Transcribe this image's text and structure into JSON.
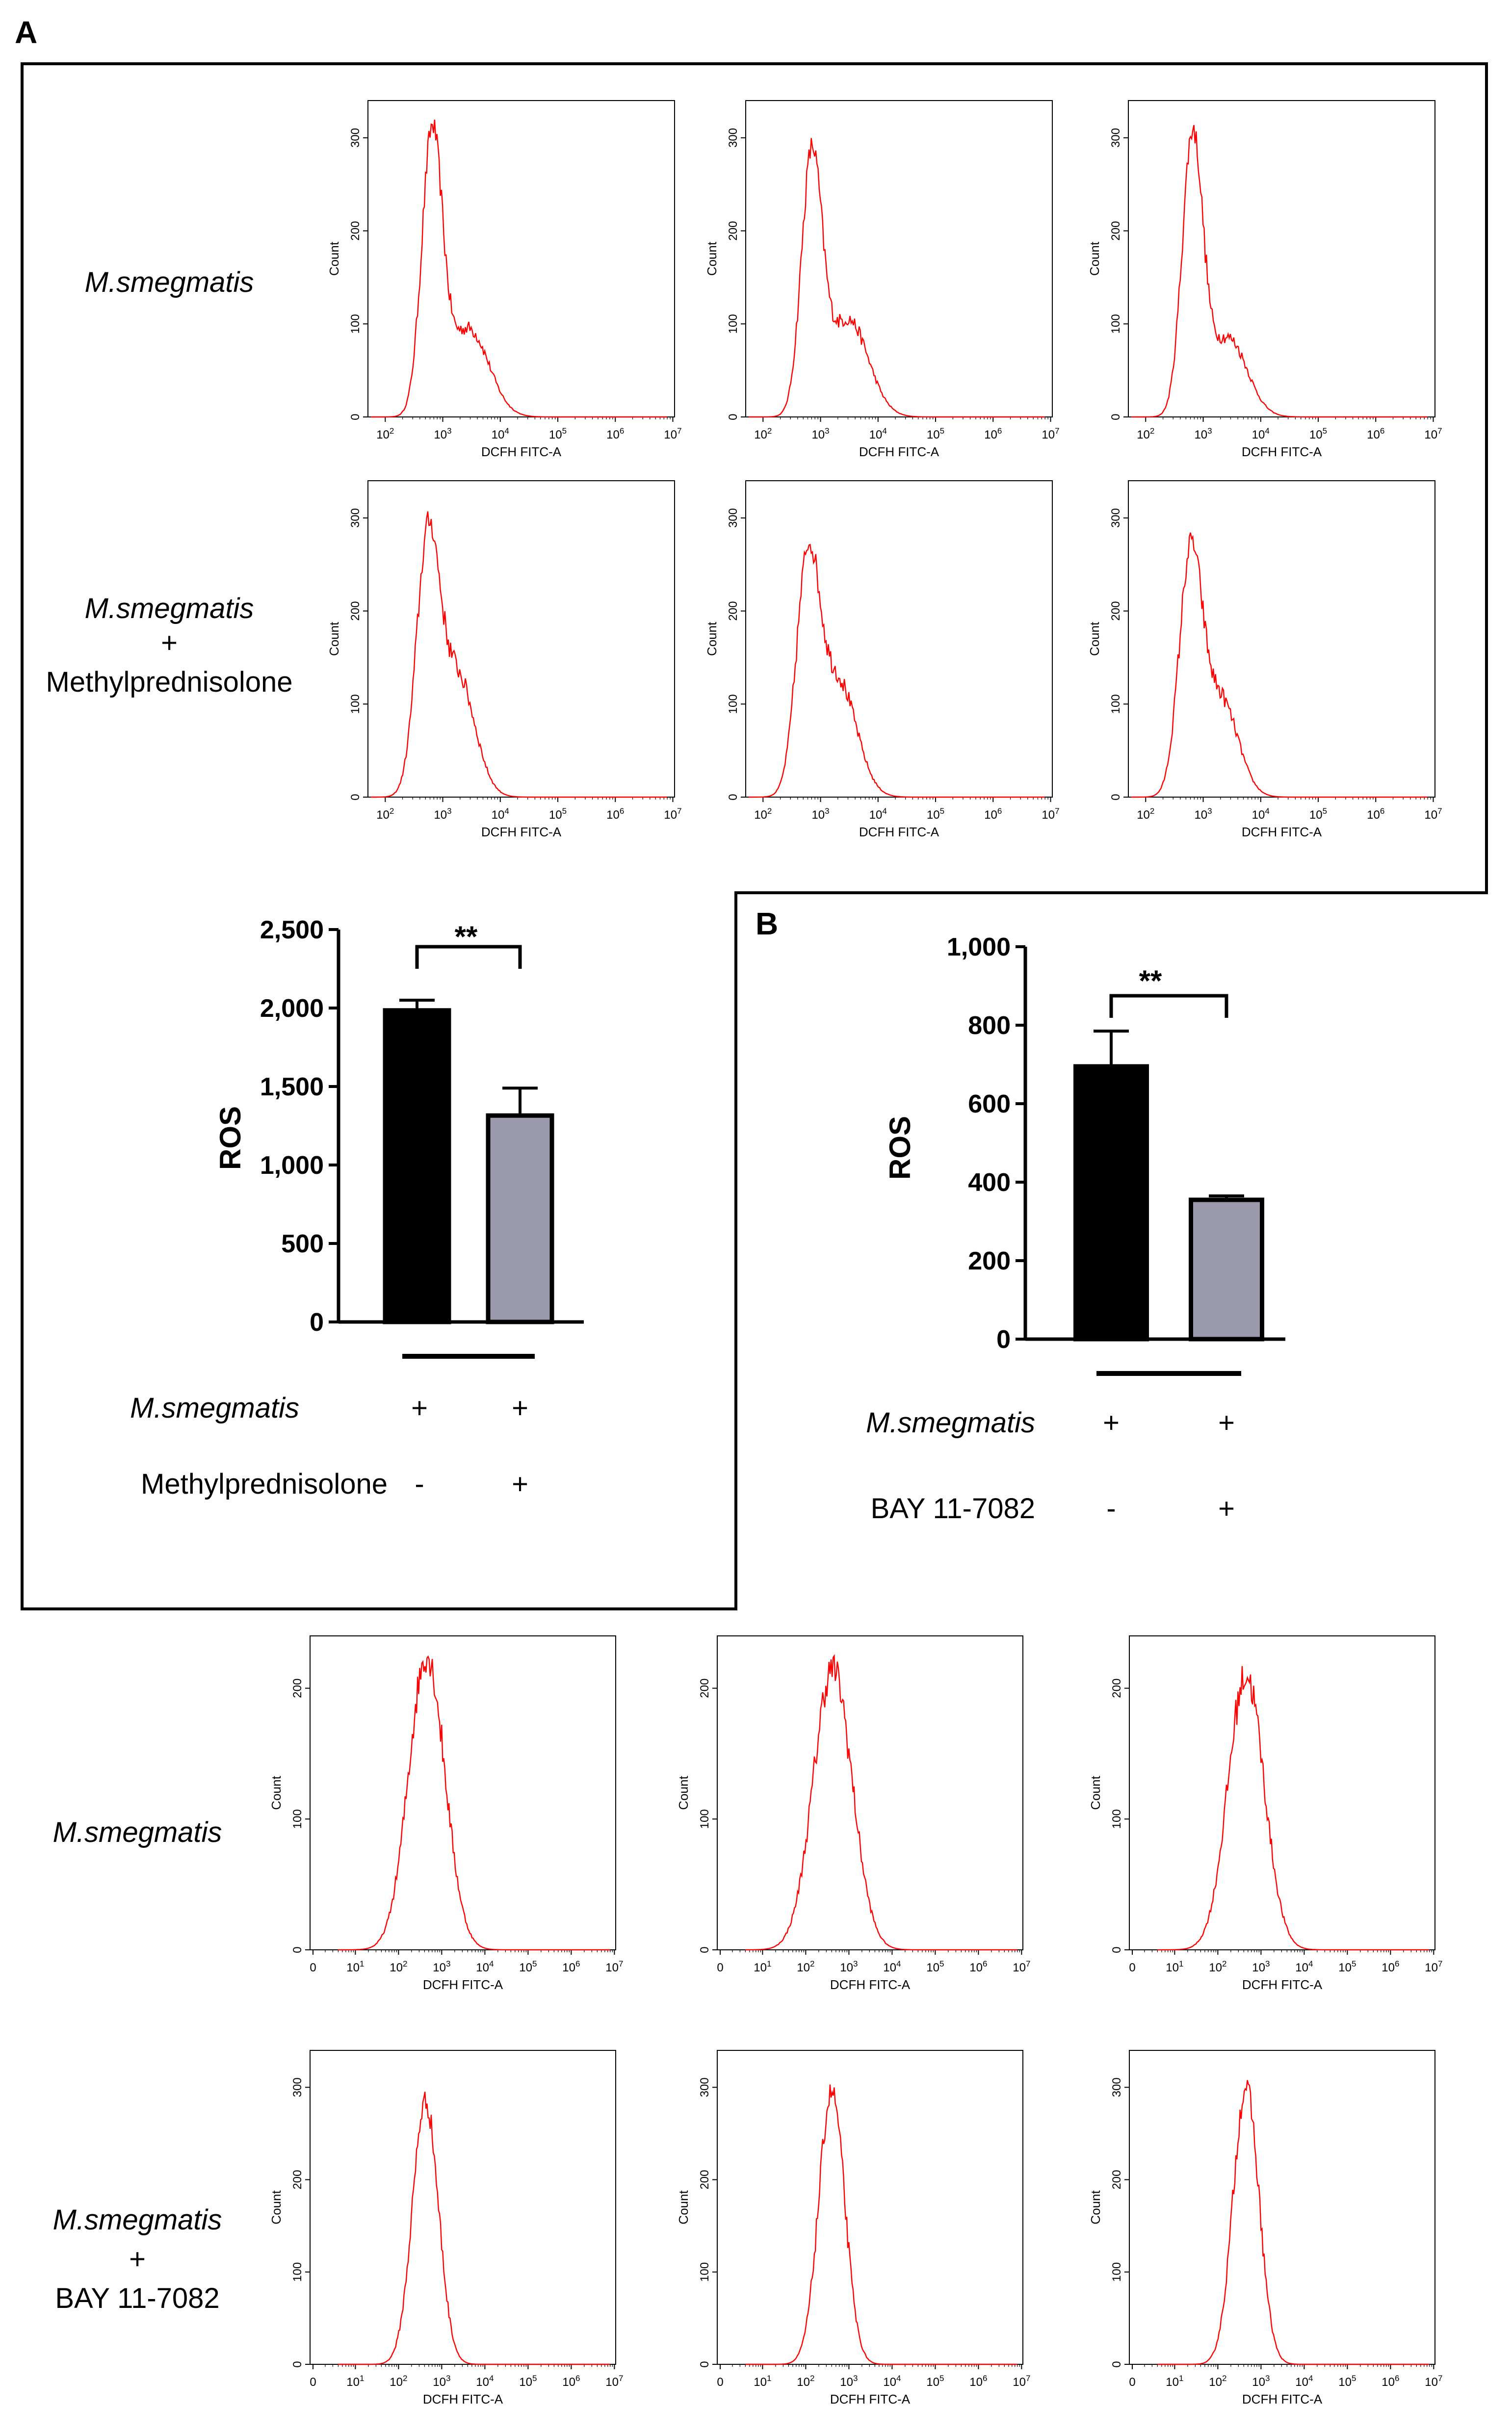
{
  "panels": {
    "A": "A",
    "B": "B"
  },
  "colors": {
    "histogram_line": "#ff0000",
    "control_bar": "#000000",
    "treated_bar": "#9a9aac",
    "frame": "#000000"
  },
  "row_labels": {
    "a_row1": [
      "M.smegmatis"
    ],
    "a_row2": [
      "M.smegmatis",
      "+",
      "Methylprednisolone"
    ],
    "b_row1": [
      "M.smegmatis"
    ],
    "b_row2": [
      "M.smegmatis",
      "+",
      "BAY 11-7082"
    ]
  },
  "histogram_axes": {
    "xlabel": "DCFH FITC-A",
    "ylabel": "Count",
    "x_ticks_A": [
      "10",
      "10",
      "10",
      "10",
      "10",
      "10"
    ],
    "x_exp_A": [
      "2",
      "3",
      "4",
      "5",
      "6",
      "7"
    ],
    "x_ticks_B": [
      "0",
      "10",
      "10",
      "10",
      "10",
      "10",
      "10",
      "10"
    ],
    "x_exp_B": [
      "",
      "1",
      "2",
      "3",
      "4",
      "5",
      "6",
      "7"
    ]
  },
  "bar_A": {
    "significance": "**",
    "ylabel": "ROS",
    "treatment_rows": [
      {
        "label": "M.smegmatis",
        "signs": [
          "+",
          "+"
        ]
      },
      {
        "label": "Methylprednisolone",
        "signs": [
          "-",
          "+"
        ]
      }
    ]
  },
  "bar_B": {
    "significance": "**",
    "ylabel": "ROS",
    "treatment_rows": [
      {
        "label": "M.smegmatis",
        "signs": [
          "+",
          "+"
        ]
      },
      {
        "label": "BAY 11-7082",
        "signs": [
          "-",
          "+"
        ]
      }
    ]
  },
  "chart_data": [
    {
      "type": "bar",
      "panel": "A",
      "categories": [
        "M.smegmatis",
        "M.smegmatis + Methylprednisolone"
      ],
      "values": [
        1985,
        1315
      ],
      "error": [
        65,
        175
      ],
      "ylabel": "ROS",
      "ylim": [
        0,
        2500
      ],
      "yticks": [
        "0",
        "500",
        "1,000",
        "1,500",
        "2,000",
        "2,500"
      ],
      "significance": "**"
    },
    {
      "type": "bar",
      "panel": "B",
      "categories": [
        "M.smegmatis",
        "M.smegmatis + BAY 11-7082"
      ],
      "values": [
        695,
        355
      ],
      "error": [
        90,
        10
      ],
      "ylabel": "ROS",
      "ylim": [
        0,
        1000
      ],
      "yticks": [
        "0",
        "200",
        "400",
        "600",
        "800",
        "1,000"
      ],
      "significance": "**"
    },
    {
      "type": "line",
      "panel": "A",
      "description_group": "flow cytometry histograms, M.smegmatis",
      "xlabel": "DCFH FITC-A",
      "ylabel": "Count",
      "x_scale": "log",
      "xlim": [
        50,
        10000000
      ],
      "ylim": [
        0,
        340
      ],
      "yticks": [
        "0",
        "100",
        "200",
        "300"
      ],
      "series": [
        {
          "peaks": [
            [
              650,
              295
            ],
            [
              2800,
              95
            ]
          ],
          "widths": [
            0.18,
            0.35
          ]
        },
        {
          "peaks": [
            [
              700,
              270
            ],
            [
              3000,
              105
            ]
          ],
          "widths": [
            0.18,
            0.35
          ]
        },
        {
          "peaks": [
            [
              650,
              295
            ],
            [
              2700,
              85
            ]
          ],
          "widths": [
            0.18,
            0.33
          ]
        }
      ]
    },
    {
      "type": "line",
      "panel": "A",
      "description_group": "flow cytometry histograms, M.smegmatis + Methylprednisolone",
      "xlabel": "DCFH FITC-A",
      "ylabel": "Count",
      "x_scale": "log",
      "xlim": [
        50,
        10000000
      ],
      "ylim": [
        0,
        340
      ],
      "yticks": [
        "0",
        "100",
        "200",
        "300"
      ],
      "series": [
        {
          "peaks": [
            [
              550,
              265
            ],
            [
              1800,
              130
            ]
          ],
          "widths": [
            0.2,
            0.3
          ]
        },
        {
          "peaks": [
            [
              600,
              240
            ],
            [
              2000,
              125
            ]
          ],
          "widths": [
            0.2,
            0.32
          ]
        },
        {
          "peaks": [
            [
              600,
              250
            ],
            [
              2000,
              105
            ]
          ],
          "widths": [
            0.2,
            0.3
          ]
        }
      ]
    },
    {
      "type": "line",
      "panel": "B",
      "description_group": "flow cytometry histograms, M.smegmatis",
      "xlabel": "DCFH FITC-A",
      "ylabel": "Count",
      "x_scale": "log",
      "xlim": [
        0,
        10000000
      ],
      "ylim": [
        0,
        240
      ],
      "yticks": [
        "0",
        "100",
        "200"
      ],
      "series": [
        {
          "peaks": [
            [
              450,
              225
            ]
          ],
          "widths": [
            0.42
          ]
        },
        {
          "peaks": [
            [
              420,
              215
            ]
          ],
          "widths": [
            0.45
          ]
        },
        {
          "peaks": [
            [
              450,
              210
            ]
          ],
          "widths": [
            0.42
          ]
        }
      ]
    },
    {
      "type": "line",
      "panel": "B",
      "description_group": "flow cytometry histograms, M.smegmatis + BAY 11-7082",
      "xlabel": "DCFH FITC-A",
      "ylabel": "Count",
      "x_scale": "log",
      "xlim": [
        0,
        10000000
      ],
      "ylim": [
        0,
        340
      ],
      "yticks": [
        "0",
        "100",
        "200",
        "300"
      ],
      "series": [
        {
          "peaks": [
            [
              420,
              285
            ]
          ],
          "widths": [
            0.3
          ]
        },
        {
          "peaks": [
            [
              400,
              295
            ]
          ],
          "widths": [
            0.3
          ]
        },
        {
          "peaks": [
            [
              450,
              300
            ]
          ],
          "widths": [
            0.3
          ]
        }
      ]
    }
  ]
}
